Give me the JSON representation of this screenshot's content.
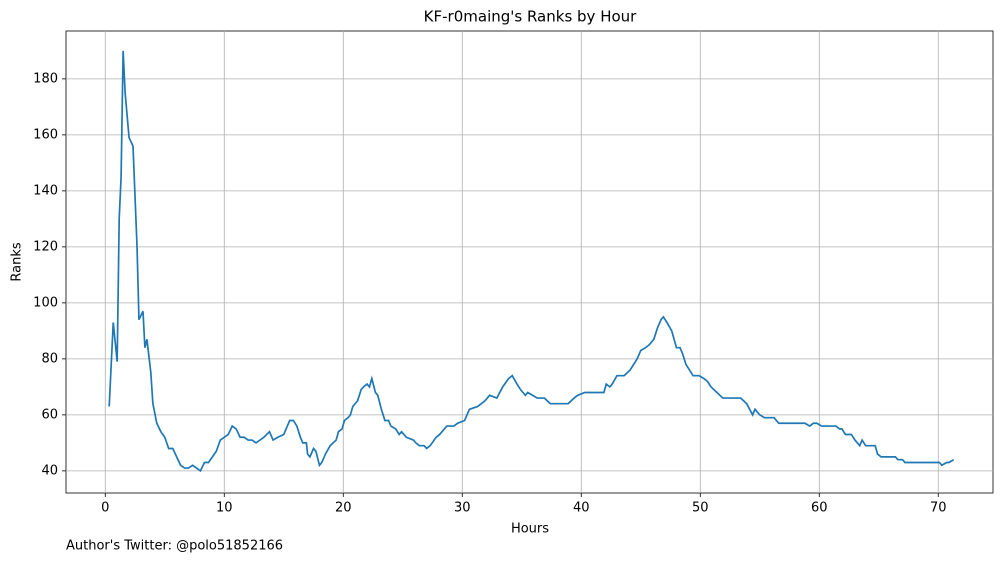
{
  "chart_data": {
    "type": "line",
    "title": "KF-r0maing's Ranks by Hour",
    "x_label": "Hours",
    "y_label": "Ranks",
    "footer": "Author's Twitter: @polo51852166",
    "xlim": [
      -3.3,
      74.6
    ],
    "ylim": [
      32.1,
      197.1
    ],
    "xticks": [
      0,
      10,
      20,
      30,
      40,
      50,
      60,
      70
    ],
    "yticks": [
      40,
      60,
      80,
      100,
      120,
      140,
      160,
      180
    ],
    "grid": true,
    "x": [
      0.33,
      0.67,
      1.0,
      1.17,
      1.33,
      1.5,
      1.67,
      2.0,
      2.33,
      2.67,
      2.83,
      3.17,
      3.33,
      3.5,
      3.83,
      4.0,
      4.33,
      4.67,
      5.0,
      5.33,
      5.67,
      6.0,
      6.33,
      6.67,
      7.0,
      7.33,
      7.67,
      8.0,
      8.33,
      8.67,
      9.0,
      9.33,
      9.67,
      10.0,
      10.33,
      10.67,
      11.0,
      11.33,
      11.67,
      12.0,
      12.33,
      12.67,
      13.0,
      13.33,
      13.8,
      14.1,
      14.5,
      15.0,
      15.5,
      15.8,
      16.1,
      16.4,
      16.6,
      16.9,
      17.0,
      17.2,
      17.5,
      17.7,
      18.0,
      18.2,
      18.5,
      18.9,
      19.4,
      19.6,
      19.9,
      20.1,
      20.4,
      20.6,
      20.8,
      21.2,
      21.5,
      21.7,
      22.0,
      22.2,
      22.4,
      22.7,
      22.9,
      23.2,
      23.5,
      23.8,
      24.0,
      24.4,
      24.7,
      24.9,
      25.3,
      25.9,
      26.1,
      26.4,
      26.8,
      27.0,
      27.3,
      27.8,
      28.1,
      28.7,
      29.3,
      29.6,
      30.2,
      30.6,
      31.3,
      31.9,
      32.3,
      32.9,
      33.4,
      33.9,
      34.2,
      34.6,
      34.9,
      35.3,
      35.5,
      35.9,
      36.3,
      36.9,
      37.4,
      38.9,
      39.4,
      39.7,
      40.3,
      41.9,
      42.1,
      42.4,
      42.6,
      43.0,
      43.6,
      44.1,
      44.7,
      45.0,
      45.4,
      45.7,
      46.1,
      46.4,
      46.7,
      46.9,
      47.2,
      47.6,
      48.0,
      48.3,
      48.5,
      48.8,
      49.1,
      49.4,
      49.9,
      50.3,
      50.6,
      50.9,
      51.4,
      51.9,
      53.4,
      53.9,
      54.4,
      54.6,
      55.0,
      55.4,
      56.2,
      56.6,
      58.8,
      59.2,
      59.5,
      59.8,
      60.2,
      61.4,
      61.7,
      61.9,
      62.2,
      62.7,
      63.0,
      63.4,
      63.6,
      63.9,
      64.7,
      64.9,
      65.2,
      66.4,
      66.6,
      67.0,
      67.2,
      70.1,
      70.3,
      70.7,
      70.9,
      71.3
    ],
    "series": [
      {
        "name": "Ranks",
        "color": "#1f77b4",
        "values": [
          63,
          93,
          79,
          130,
          145,
          190,
          175,
          159,
          156,
          120,
          94,
          97,
          84,
          87,
          75,
          64,
          57,
          54,
          52,
          48,
          48,
          45,
          42,
          41,
          41,
          42,
          41,
          40,
          43,
          43,
          45,
          47,
          51,
          52,
          53,
          56,
          55,
          52,
          52,
          51,
          51,
          50,
          51,
          52,
          54,
          51,
          52,
          53,
          58,
          58,
          56,
          52,
          50,
          50,
          46,
          45,
          48,
          47,
          42,
          43,
          46,
          49,
          51,
          54,
          55,
          58,
          59,
          60,
          63,
          65,
          69,
          70,
          71,
          70,
          73,
          68,
          67,
          62,
          58,
          58,
          56,
          55,
          53,
          54,
          52,
          51,
          50,
          49,
          49,
          48,
          49,
          52,
          53,
          56,
          56,
          57,
          58,
          62,
          63,
          65,
          67,
          66,
          70,
          73,
          74,
          71,
          69,
          67,
          68,
          67,
          66,
          66,
          64,
          64,
          66,
          67,
          68,
          68,
          71,
          70,
          71,
          74,
          74,
          76,
          80,
          83,
          84,
          85,
          87,
          91,
          94,
          95,
          93,
          90,
          84,
          84,
          82,
          78,
          76,
          74,
          74,
          73,
          72,
          70,
          68,
          66,
          66,
          64,
          60,
          62,
          60,
          59,
          59,
          57,
          57,
          56,
          57,
          57,
          56,
          56,
          55,
          55,
          53,
          53,
          51,
          49,
          51,
          49,
          49,
          46,
          45,
          45,
          44,
          44,
          43,
          43,
          42,
          43,
          43,
          44
        ]
      }
    ]
  }
}
